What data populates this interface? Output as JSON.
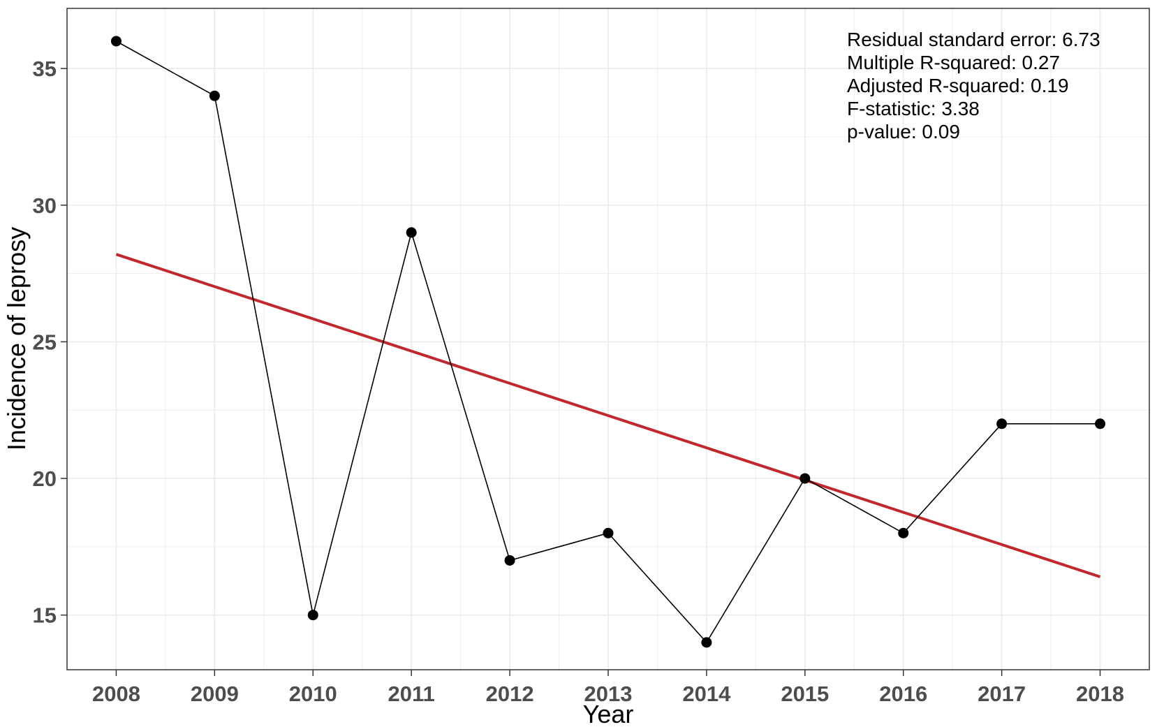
{
  "chart_data": {
    "type": "line",
    "xlabel": "Year",
    "ylabel": "Incidence of leprosy",
    "x": [
      2008,
      2009,
      2010,
      2011,
      2012,
      2013,
      2014,
      2015,
      2016,
      2017,
      2018
    ],
    "series": [
      {
        "values": [
          36,
          34,
          15,
          29,
          17,
          18,
          14,
          20,
          18,
          22,
          22
        ]
      }
    ],
    "trend_line": {
      "type": "linear",
      "x": [
        2008,
        2018
      ],
      "y": [
        28.2,
        16.4
      ]
    },
    "xlim": [
      2007.5,
      2018.5
    ],
    "ylim": [
      13,
      37.2
    ],
    "x_ticks": [
      "2008",
      "2009",
      "2010",
      "2011",
      "2012",
      "2013",
      "2014",
      "2015",
      "2016",
      "2017",
      "2018"
    ],
    "y_ticks": [
      "15",
      "20",
      "25",
      "30",
      "35"
    ],
    "annotation": [
      "Residual standard error: 6.73",
      "Multiple R-squared:  0.27",
      "Adjusted R-squared:  0.19",
      "F-statistic: 3.38",
      "p-value: 0.09"
    ],
    "grid": true,
    "legend": "none",
    "colors": {
      "line": "#000000",
      "points": "#000000",
      "trend": "#c0282d",
      "grid": "#ebebeb",
      "panel_border": "#333333"
    }
  }
}
